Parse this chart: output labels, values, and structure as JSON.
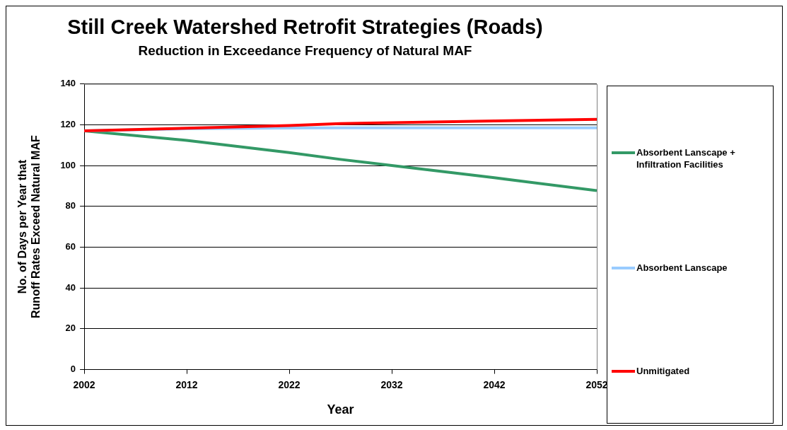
{
  "chart_data": {
    "type": "line",
    "title": "Still Creek Watershed Retrofit Strategies (Roads)",
    "subtitle": "Reduction in Exceedance Frequency of Natural MAF",
    "xlabel": "Year",
    "ylabel": "No. of Days per Year that Runoff Rates Exceed Natural MAF",
    "x": [
      2002,
      2012,
      2022,
      2027,
      2032,
      2042,
      2052
    ],
    "series": [
      {
        "name": "Absorbent Lanscape + Infiltration Facilities",
        "color": "#339966",
        "values": [
          117,
          112.3,
          106.3,
          103,
          100,
          94,
          87.7
        ]
      },
      {
        "name": "Absorbent Lanscape",
        "color": "#99ccff",
        "values": [
          117,
          118,
          118.4,
          118.5,
          118.5,
          118.5,
          118.5
        ]
      },
      {
        "name": "Unmitigated",
        "color": "#ff0000",
        "values": [
          117,
          118.3,
          119.6,
          120.5,
          121,
          121.8,
          122.6
        ]
      }
    ],
    "xlim": [
      2002,
      2052
    ],
    "xticks": [
      2002,
      2012,
      2022,
      2032,
      2042,
      2052
    ],
    "ylim": [
      0,
      140
    ],
    "yticks": [
      0,
      20,
      40,
      60,
      80,
      100,
      120,
      140
    ],
    "grid": "y",
    "legend": "right",
    "marker": "none",
    "line_style": "solid"
  }
}
